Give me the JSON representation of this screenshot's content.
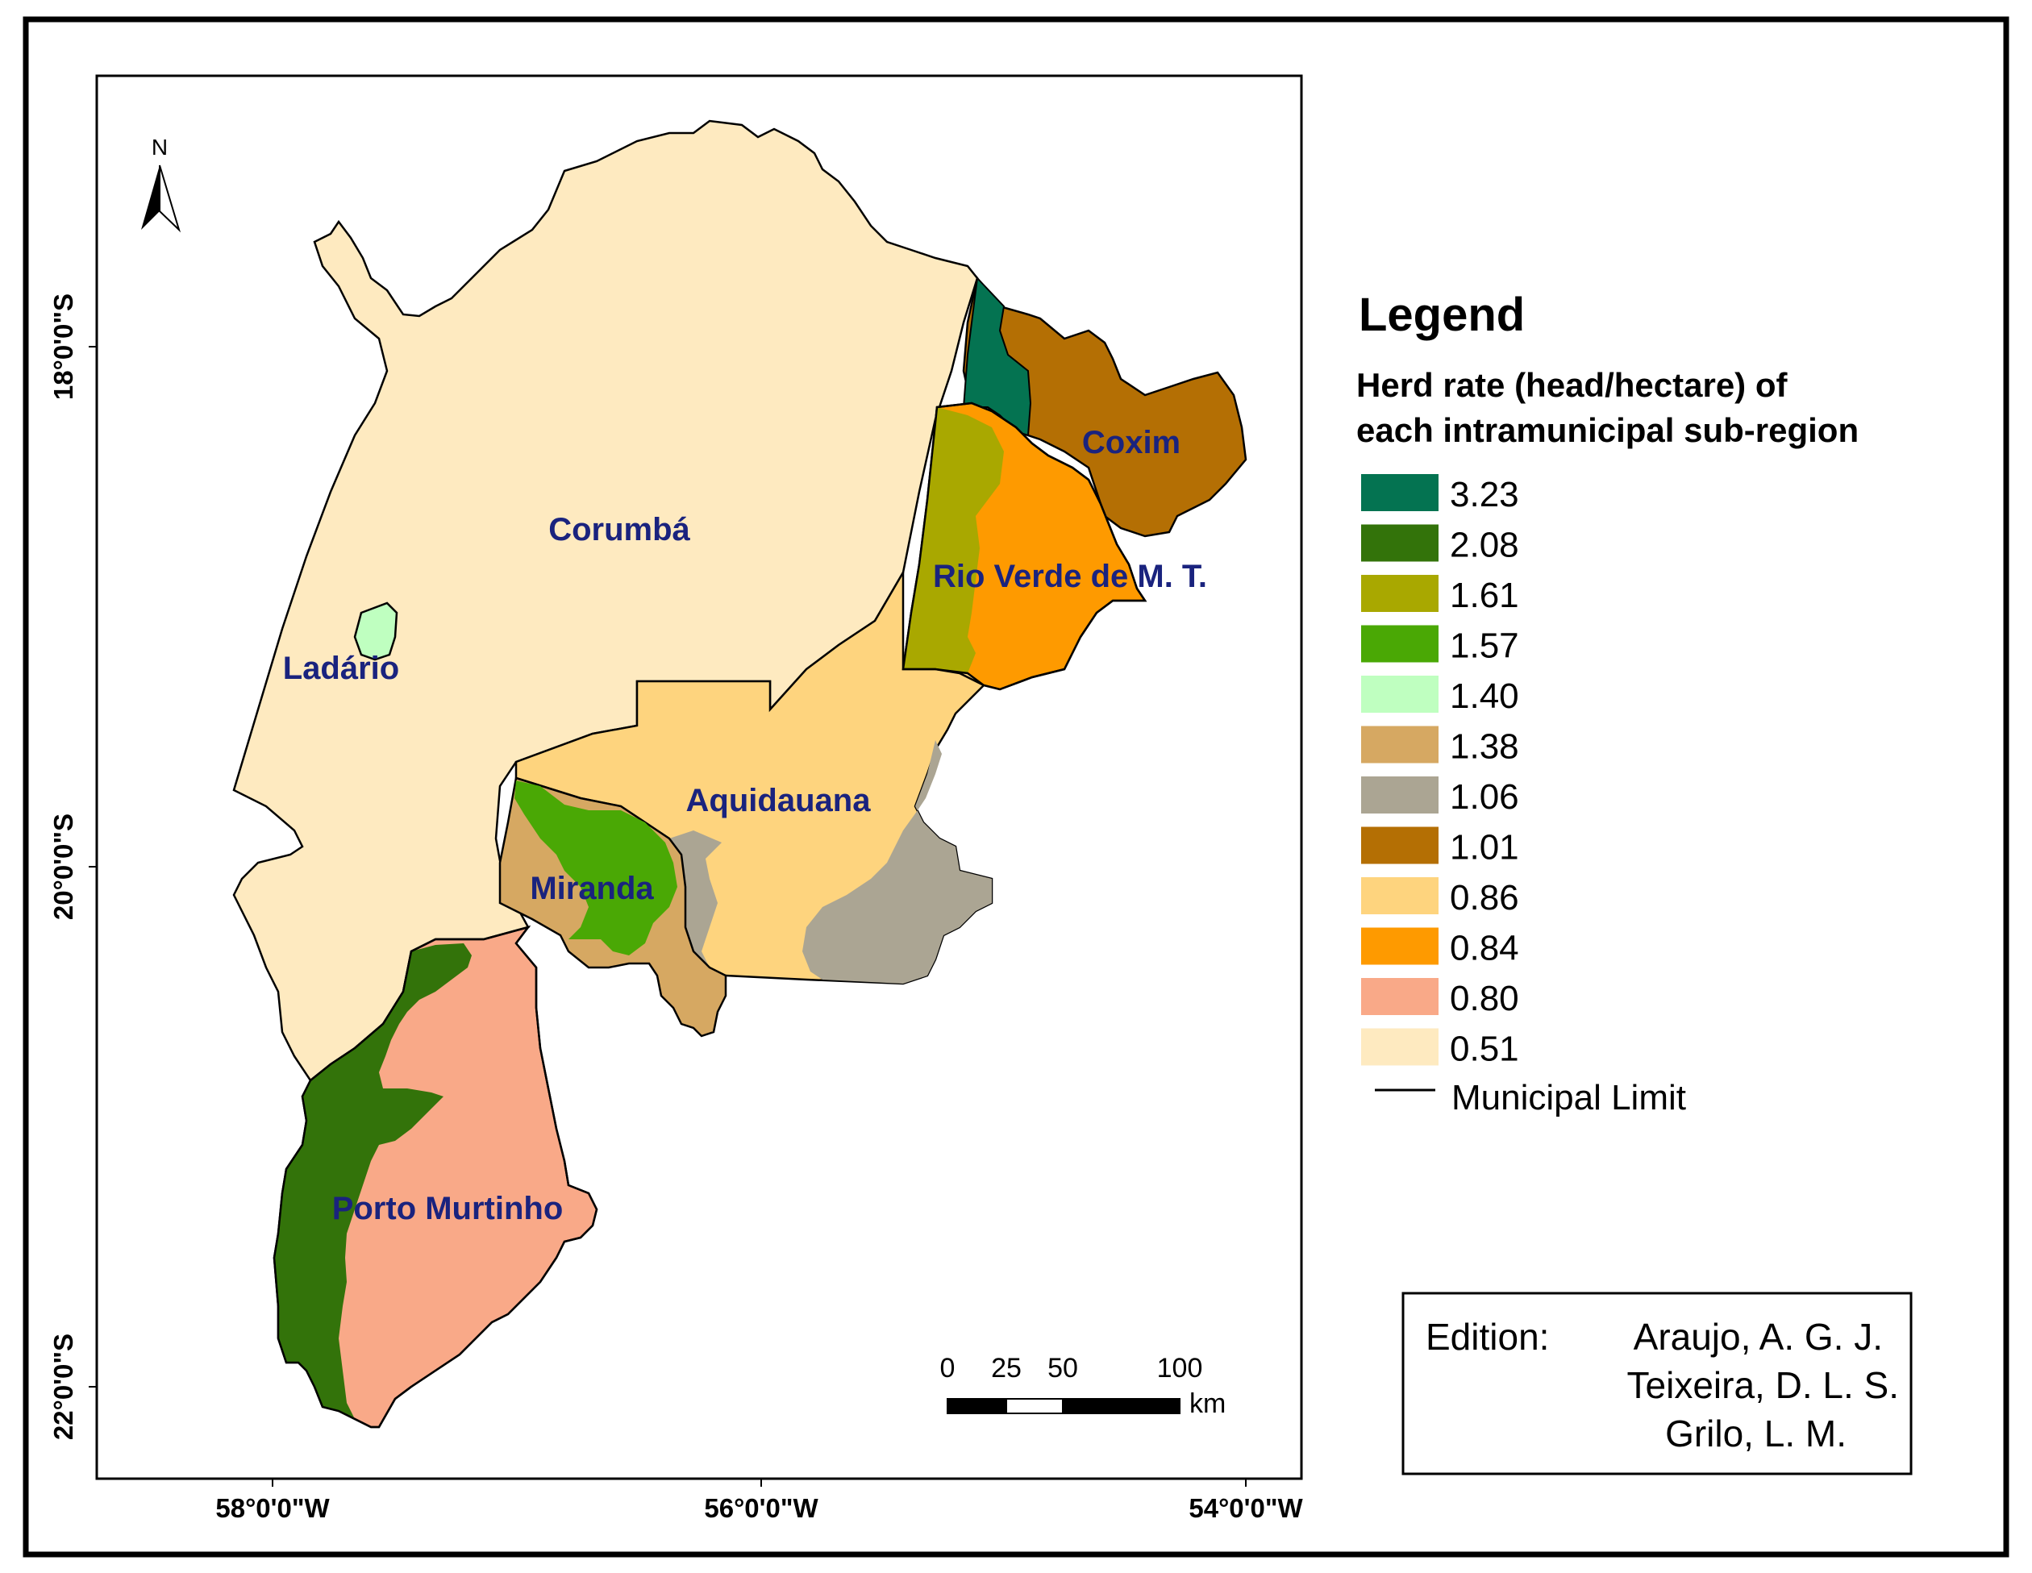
{
  "legend": {
    "title": "Legend",
    "subtitle_line1": "Herd rate (head/hectare) of",
    "subtitle_line2": "each intramunicipal sub-region",
    "classes": [
      {
        "value": "3.23",
        "color": "#047351"
      },
      {
        "value": "2.08",
        "color": "#33730a"
      },
      {
        "value": "1.61",
        "color": "#a9a800"
      },
      {
        "value": "1.57",
        "color": "#4aa805"
      },
      {
        "value": "1.40",
        "color": "#bfffc0"
      },
      {
        "value": "1.38",
        "color": "#d6a862"
      },
      {
        "value": "1.06",
        "color": "#aba593"
      },
      {
        "value": "1.01",
        "color": "#b46f04"
      },
      {
        "value": "0.86",
        "color": "#fed47e"
      },
      {
        "value": "0.84",
        "color": "#fe9a00"
      },
      {
        "value": "0.80",
        "color": "#f9a988"
      },
      {
        "value": "0.51",
        "color": "#feeac0"
      }
    ],
    "limit_label": "Municipal Limit"
  },
  "municipalities": {
    "corumba": "Corumbá",
    "ladario": "Ladário",
    "coxim": "Coxim",
    "rio_verde": "Rio Verde de M. T.",
    "aquidauana": "Aquidauana",
    "miranda": "Miranda",
    "porto_murtinho": "Porto Murtinho"
  },
  "axes": {
    "lat_labels": [
      "18°0'0\"S",
      "20°0'0\"S",
      "22°0'0\"S"
    ],
    "lon_labels": [
      "58°0'0\"W",
      "56°0'0\"W",
      "54°0'0\"W"
    ]
  },
  "north_arrow": {
    "label": "N",
    "icon": "north-arrow-icon"
  },
  "scale_bar": {
    "ticks": [
      "0",
      "25",
      "50",
      "100"
    ],
    "unit": "km"
  },
  "edition": {
    "label": "Edition:",
    "authors": [
      "Araujo, A. G. J.",
      "Teixeira, D. L. S.",
      "Grilo, L. M."
    ]
  }
}
